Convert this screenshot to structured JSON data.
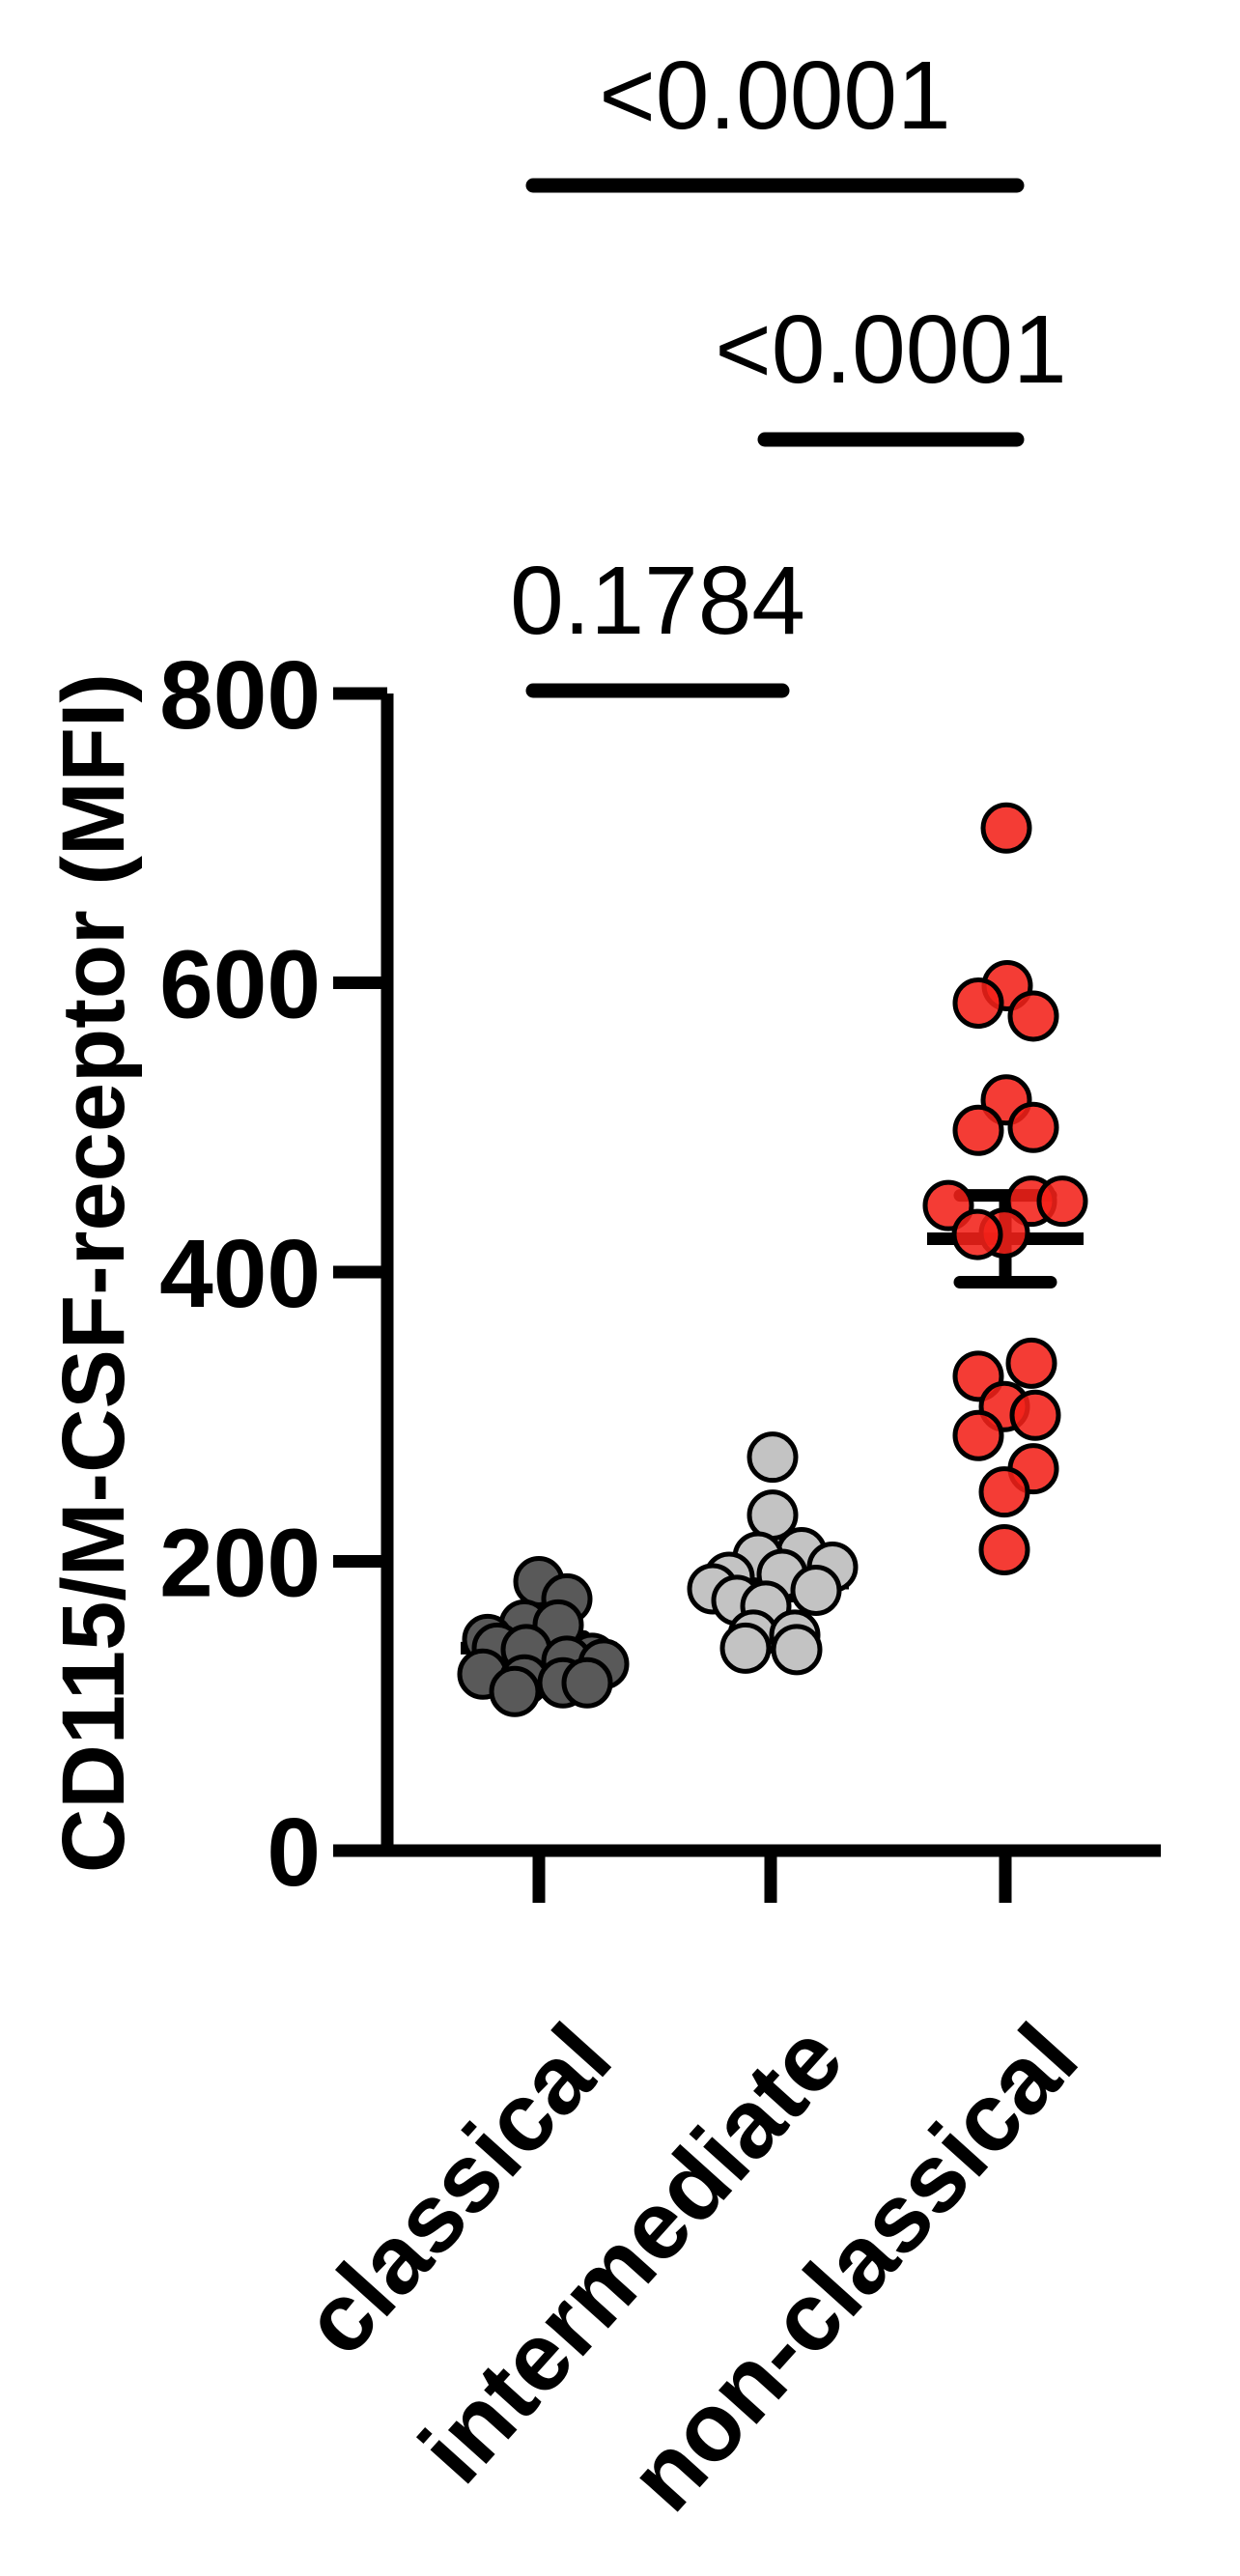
{
  "figure": {
    "background": "#ffffff",
    "axis_color": "#000000"
  },
  "chart_data": {
    "type": "scatter",
    "subtype": "column-dot-plot-with-mean-sem",
    "title": "",
    "xlabel": "",
    "ylabel": "CD115/M-CSF-receptor (MFI)",
    "ylim": [
      0,
      800
    ],
    "yticks": [
      0,
      200,
      400,
      600,
      800
    ],
    "grid": false,
    "legend_position": "none",
    "categories": [
      "classical",
      "intermediate",
      "non-classical"
    ],
    "groups": [
      {
        "name": "classical",
        "dot_fill": "#595959",
        "dot_opacity": 1,
        "mean": 140,
        "sem": 8,
        "points": [
          {
            "dx": 0,
            "y": 186
          },
          {
            "dx": 29,
            "y": 174
          },
          {
            "dx": -15,
            "y": 156
          },
          {
            "dx": 20,
            "y": 156
          },
          {
            "dx": -53,
            "y": 146
          },
          {
            "dx": -43,
            "y": 140
          },
          {
            "dx": -13,
            "y": 139
          },
          {
            "dx": 55,
            "y": 133
          },
          {
            "dx": 29,
            "y": 131
          },
          {
            "dx": 67,
            "y": 129
          },
          {
            "dx": -58,
            "y": 122
          },
          {
            "dx": -15,
            "y": 118
          },
          {
            "dx": 25,
            "y": 116
          },
          {
            "dx": 50,
            "y": 116
          },
          {
            "dx": -25,
            "y": 110
          }
        ]
      },
      {
        "name": "intermediate",
        "dot_fill": "#c3c3c3",
        "dot_opacity": 1,
        "mean": 185,
        "sem": 9,
        "points": [
          {
            "dx": 2,
            "y": 272
          },
          {
            "dx": 2,
            "y": 232
          },
          {
            "dx": 32,
            "y": 206
          },
          {
            "dx": -13,
            "y": 203
          },
          {
            "dx": 64,
            "y": 196
          },
          {
            "dx": 12,
            "y": 191
          },
          {
            "dx": -43,
            "y": 189
          },
          {
            "dx": -60,
            "y": 181
          },
          {
            "dx": 47,
            "y": 180
          },
          {
            "dx": -35,
            "y": 173
          },
          {
            "dx": -5,
            "y": 169
          },
          {
            "dx": -18,
            "y": 149
          },
          {
            "dx": 25,
            "y": 149
          },
          {
            "dx": -26,
            "y": 140
          },
          {
            "dx": 27,
            "y": 139
          }
        ]
      },
      {
        "name": "non-classical",
        "dot_fill": "#f32119",
        "dot_opacity": 0.88,
        "mean": 423,
        "sem": 30,
        "points": [
          {
            "dx": 1,
            "y": 707
          },
          {
            "dx": 2,
            "y": 598
          },
          {
            "dx": -28,
            "y": 586
          },
          {
            "dx": 29,
            "y": 577
          },
          {
            "dx": 1,
            "y": 519
          },
          {
            "dx": 29,
            "y": 500
          },
          {
            "dx": -28,
            "y": 498
          },
          {
            "dx": 27,
            "y": 449
          },
          {
            "dx": 59,
            "y": 449
          },
          {
            "dx": -59,
            "y": 446
          },
          {
            "dx": -1,
            "y": 427
          },
          {
            "dx": -29,
            "y": 426
          },
          {
            "dx": 27,
            "y": 337
          },
          {
            "dx": -28,
            "y": 328
          },
          {
            "dx": -1,
            "y": 307
          },
          {
            "dx": 31,
            "y": 301
          },
          {
            "dx": -28,
            "y": 287
          },
          {
            "dx": 29,
            "y": 264
          },
          {
            "dx": -1,
            "y": 248
          },
          {
            "dx": -1,
            "y": 208
          }
        ]
      }
    ],
    "comparisons": [
      {
        "from": 0,
        "to": 2,
        "p": "<0.0001"
      },
      {
        "from": 1,
        "to": 2,
        "p": "<0.0001"
      },
      {
        "from": 0,
        "to": 1,
        "p": "0.1784"
      }
    ]
  }
}
